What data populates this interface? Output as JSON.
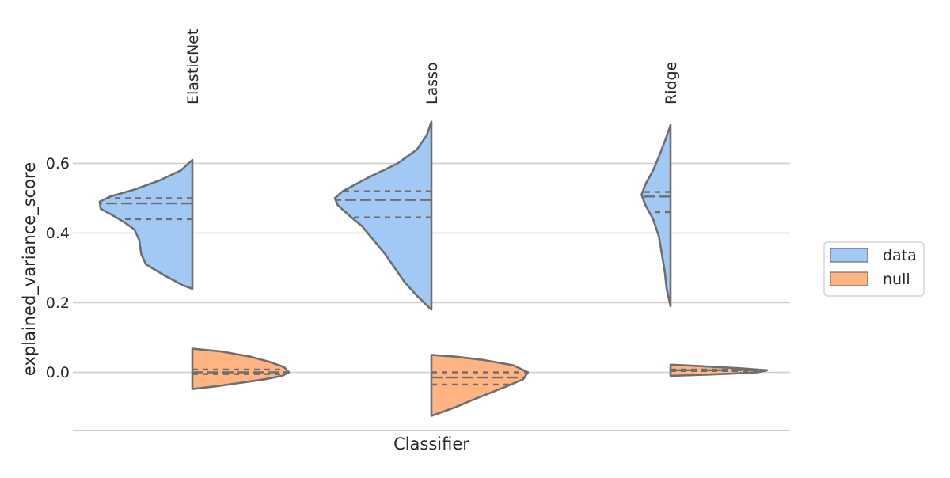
{
  "chart_data": {
    "type": "split-violin",
    "xlabel": "Classifier",
    "ylabel": "explained_variance_score",
    "categories": [
      "ElasticNet",
      "Lasso",
      "Ridge"
    ],
    "category_label_position": "top, rotated vertical",
    "yticks": [
      0.0,
      0.2,
      0.4,
      0.6
    ],
    "ytick_labels": [
      "0.0",
      "0.2",
      "0.4",
      "0.6"
    ],
    "ylim": [
      -0.17,
      0.75
    ],
    "grid": "horizontal",
    "legend": {
      "placement": "right",
      "entries": [
        {
          "label": "data",
          "color": "#a1c9f4"
        },
        {
          "label": "null",
          "color": "#ffb482"
        }
      ]
    },
    "colors": {
      "data": "#a1c9f4",
      "null": "#ffb482",
      "outline": "#6e6e6e",
      "grid": "#cccccc",
      "axis": "#cccccc"
    },
    "series": [
      {
        "name": "data",
        "side": "left",
        "violins": [
          {
            "category": "ElasticNet",
            "profile": [
              [
                0.61,
                0.0
              ],
              [
                0.58,
                0.12
              ],
              [
                0.55,
                0.35
              ],
              [
                0.525,
                0.6
              ],
              [
                0.505,
                0.85
              ],
              [
                0.49,
                0.96
              ],
              [
                0.47,
                0.95
              ],
              [
                0.45,
                0.82
              ],
              [
                0.43,
                0.7
              ],
              [
                0.41,
                0.6
              ],
              [
                0.38,
                0.55
              ],
              [
                0.34,
                0.53
              ],
              [
                0.31,
                0.48
              ],
              [
                0.28,
                0.3
              ],
              [
                0.25,
                0.1
              ],
              [
                0.24,
                0.0
              ]
            ],
            "quartiles": [
              0.44,
              0.485,
              0.5
            ]
          },
          {
            "category": "Lasso",
            "profile": [
              [
                0.72,
                0.0
              ],
              [
                0.68,
                0.05
              ],
              [
                0.64,
                0.15
              ],
              [
                0.6,
                0.35
              ],
              [
                0.56,
                0.65
              ],
              [
                0.52,
                0.92
              ],
              [
                0.5,
                1.0
              ],
              [
                0.48,
                0.97
              ],
              [
                0.45,
                0.85
              ],
              [
                0.42,
                0.72
              ],
              [
                0.38,
                0.6
              ],
              [
                0.34,
                0.48
              ],
              [
                0.3,
                0.38
              ],
              [
                0.26,
                0.28
              ],
              [
                0.22,
                0.15
              ],
              [
                0.18,
                0.0
              ]
            ],
            "quartiles": [
              0.445,
              0.495,
              0.52
            ]
          },
          {
            "category": "Ridge",
            "profile": [
              [
                0.71,
                0.0
              ],
              [
                0.67,
                0.05
              ],
              [
                0.62,
                0.12
              ],
              [
                0.58,
                0.18
              ],
              [
                0.54,
                0.26
              ],
              [
                0.51,
                0.3
              ],
              [
                0.48,
                0.26
              ],
              [
                0.44,
                0.18
              ],
              [
                0.39,
                0.12
              ],
              [
                0.34,
                0.09
              ],
              [
                0.29,
                0.06
              ],
              [
                0.24,
                0.04
              ],
              [
                0.19,
                0.0
              ]
            ],
            "quartiles": [
              0.46,
              0.505,
              0.518
            ]
          }
        ]
      },
      {
        "name": "null",
        "side": "right",
        "violins": [
          {
            "category": "ElasticNet",
            "profile": [
              [
                0.068,
                0.0
              ],
              [
                0.06,
                0.3
              ],
              [
                0.045,
                0.6
              ],
              [
                0.03,
                0.8
              ],
              [
                0.015,
                0.95
              ],
              [
                0.0,
                1.0
              ],
              [
                -0.01,
                0.93
              ],
              [
                -0.02,
                0.75
              ],
              [
                -0.03,
                0.5
              ],
              [
                -0.04,
                0.25
              ],
              [
                -0.048,
                0.0
              ]
            ],
            "quartiles": [
              -0.005,
              0.0,
              0.008
            ]
          },
          {
            "category": "Lasso",
            "profile": [
              [
                0.05,
                0.0
              ],
              [
                0.045,
                0.25
              ],
              [
                0.035,
                0.55
              ],
              [
                0.02,
                0.85
              ],
              [
                0.0,
                1.0
              ],
              [
                -0.02,
                0.95
              ],
              [
                -0.04,
                0.78
              ],
              [
                -0.06,
                0.6
              ],
              [
                -0.08,
                0.42
              ],
              [
                -0.1,
                0.25
              ],
              [
                -0.115,
                0.1
              ],
              [
                -0.125,
                0.0
              ]
            ],
            "quartiles": [
              -0.035,
              -0.015,
              0.0
            ]
          },
          {
            "category": "Ridge",
            "profile": [
              [
                0.022,
                0.0
              ],
              [
                0.018,
                0.3
              ],
              [
                0.012,
                0.7
              ],
              [
                0.006,
                1.0
              ],
              [
                0.0,
                0.9
              ],
              [
                -0.004,
                0.6
              ],
              [
                -0.008,
                0.25
              ],
              [
                -0.01,
                0.0
              ]
            ],
            "quartiles": [
              0.004,
              0.006,
              0.008
            ]
          }
        ]
      }
    ]
  }
}
